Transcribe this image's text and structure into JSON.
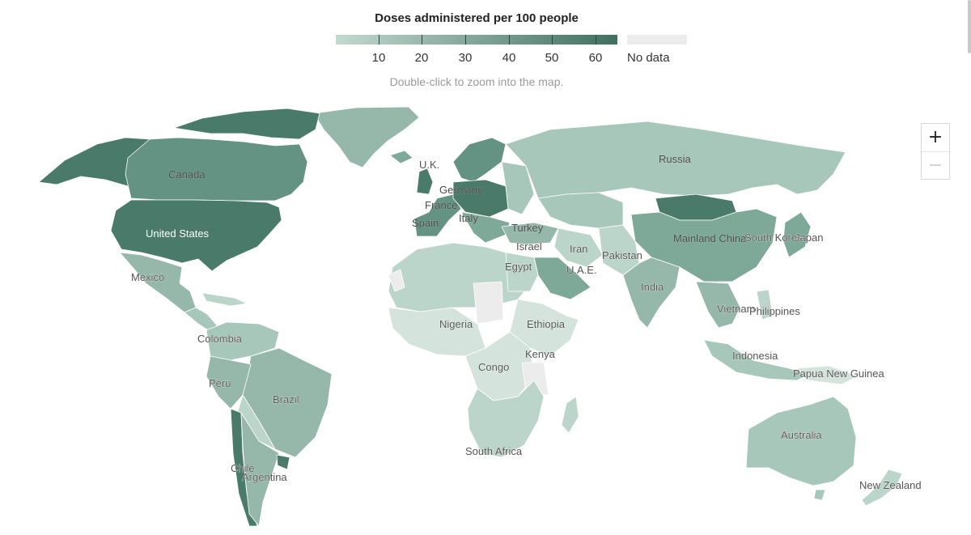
{
  "legend": {
    "title": "Doses administered per 100 people",
    "ticks": [
      "10",
      "20",
      "30",
      "40",
      "50",
      "60"
    ],
    "no_data_label": "No data",
    "low_color": "#c3d9d0",
    "high_color": "#3f7060",
    "no_data_color": "#ececec"
  },
  "hint": "Double-click to zoom into the map.",
  "zoom": {
    "in_label": "+",
    "out_label": "−"
  },
  "labels": {
    "canada": "Canada",
    "united_states": "United States",
    "mexico": "Mexico",
    "colombia": "Colombia",
    "peru": "Peru",
    "brazil": "Brazil",
    "chile": "Chile",
    "argentina": "Argentina",
    "uk": "U.K.",
    "germany": "Germany",
    "france": "France",
    "spain": "Spain",
    "italy": "Italy",
    "turkey": "Turkey",
    "israel": "Israel",
    "egypt": "Egypt",
    "iran": "Iran",
    "uae": "U.A.E.",
    "pakistan": "Pakistan",
    "india": "India",
    "russia": "Russia",
    "mainland_china": "Mainland China",
    "south_korea": "South Korea",
    "japan": "Japan",
    "vietnam": "Vietnam",
    "philippines": "Philippines",
    "indonesia": "Indonesia",
    "papua_new_guinea": "Papua New Guinea",
    "australia": "Australia",
    "new_zealand": "New Zealand",
    "nigeria": "Nigeria",
    "ethiopia": "Ethiopia",
    "kenya": "Kenya",
    "congo": "Congo",
    "south_africa": "South Africa"
  },
  "fill_colors": {
    "very_low": "#d4e4dd",
    "low": "#bcd5cb",
    "mid_low": "#a8c7bb",
    "mid": "#95b8ab",
    "mid_high": "#7ea999",
    "high": "#649383",
    "very_high": "#4a7b6a",
    "no_data": "#ececec"
  }
}
